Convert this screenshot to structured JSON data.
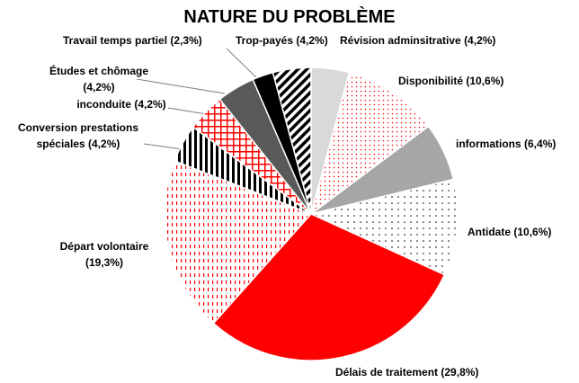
{
  "chart_data": {
    "type": "pie",
    "title": "NATURE DU PROBLÈME",
    "categories": [
      "Révision adminsitrative",
      "Disponibilité",
      "informations",
      "Antidate",
      "Délais de traitement",
      "Départ volontaire",
      "Conversion prestations spéciales",
      "inconduite",
      "Études et chômage",
      "Travail temps partiel",
      "Trop-payés"
    ],
    "values": [
      4.2,
      10.6,
      6.4,
      10.6,
      29.8,
      19.3,
      4.2,
      4.2,
      4.2,
      2.3,
      4.2
    ],
    "value_labels": [
      "(4,2%)",
      "(10,6%)",
      "(6,4%)",
      "(10,6%)",
      "(29,8%)",
      "(19,3%)",
      "(4,2%)",
      "(4,2%)",
      "(4,2%)",
      "(2,3%)",
      "(4,2%)"
    ],
    "colors": [
      "#d9d9d9",
      "#ff0000",
      "#a6a6a6",
      "#000000",
      "#ff0000",
      "#ff0000",
      "#000000",
      "#ff0000",
      "#595959",
      "#000000",
      "#000000"
    ],
    "fills": [
      "solid",
      "dots",
      "solid",
      "dots",
      "solid",
      "dashes",
      "vertical-stripes",
      "grid",
      "solid",
      "solid",
      "diagonal-stripes"
    ]
  }
}
